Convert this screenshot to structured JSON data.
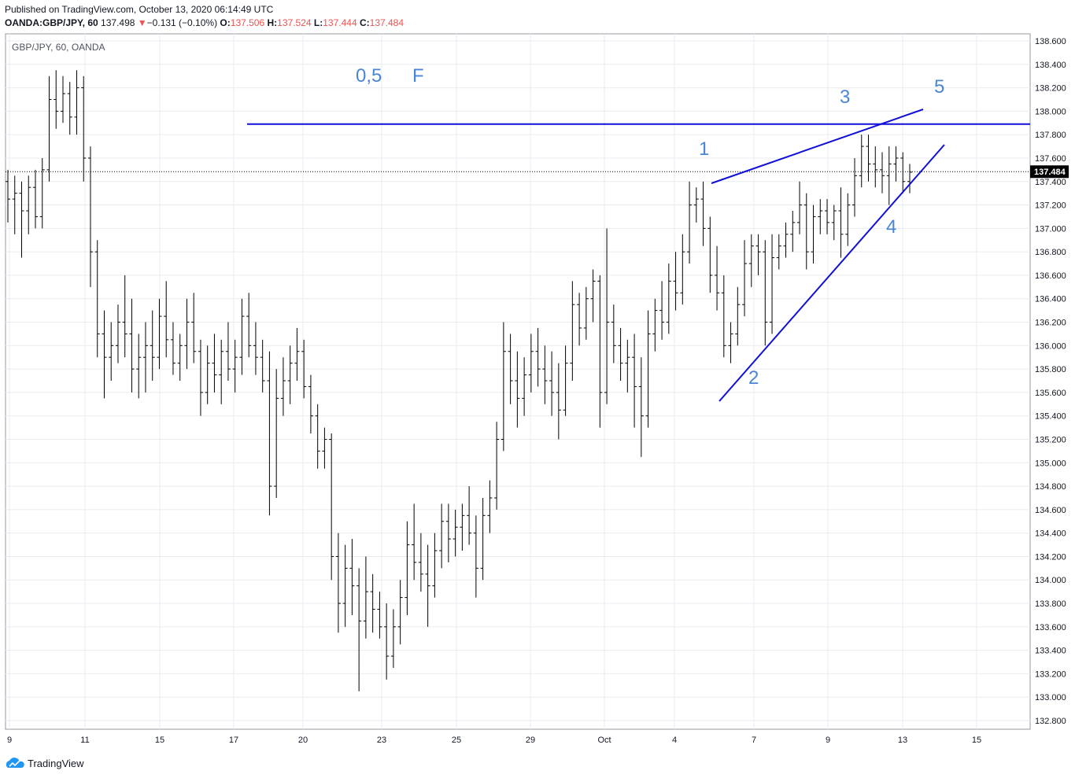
{
  "header": {
    "published": "Published on TradingView.com, October 13, 2020 06:14:49 UTC",
    "symbol": "OANDA:GBP/JPY, 60",
    "last": "137.498",
    "change_arrow": "▼",
    "change": "−0.131 (−0.10%)",
    "o_label": "O:",
    "o_value": "137.506",
    "h_label": "H:",
    "h_value": "137.524",
    "l_label": "L:",
    "l_value": "137.444",
    "c_label": "C:",
    "c_value": "137.484"
  },
  "footer": {
    "brand": "TradingView",
    "logo_icon": "tradingview-cloud-icon"
  },
  "colors": {
    "bars": "#000000",
    "drawing": "#1010d8",
    "annotation": "#4a86d4",
    "grid": "#e8ebf0",
    "price_tag": "#000000",
    "change_down": "#ef5350"
  },
  "chart_data": {
    "type": "ohlc",
    "title": "GBP/JPY, 60, OANDA",
    "x_ticks": [
      "9",
      "11",
      "15",
      "17",
      "20",
      "23",
      "25",
      "29",
      "Oct",
      "4",
      "7",
      "9",
      "13",
      "15"
    ],
    "y_ticks": [
      "138.600",
      "138.400",
      "138.200",
      "138.000",
      "137.800",
      "137.600",
      "137.400",
      "137.200",
      "137.000",
      "136.800",
      "136.600",
      "136.400",
      "136.200",
      "136.000",
      "135.800",
      "135.600",
      "135.400",
      "135.200",
      "135.000",
      "134.800",
      "134.600",
      "134.400",
      "134.200",
      "134.000",
      "133.800",
      "133.600",
      "133.400",
      "133.200",
      "133.000",
      "132.800"
    ],
    "ylim": [
      132.75,
      138.66
    ],
    "last_price": 137.484,
    "last_price_label": "137.484",
    "grid": true,
    "bars": [
      [
        137.4,
        137.5,
        137.05,
        137.25
      ],
      [
        137.25,
        137.45,
        136.95,
        137.3
      ],
      [
        137.3,
        137.4,
        136.75,
        137.15
      ],
      [
        137.15,
        137.45,
        136.95,
        137.35
      ],
      [
        137.35,
        137.5,
        137.0,
        137.1
      ],
      [
        137.1,
        137.6,
        137.0,
        137.5
      ],
      [
        137.5,
        138.3,
        137.4,
        138.1
      ],
      [
        138.1,
        138.35,
        137.85,
        138.0
      ],
      [
        138.0,
        138.3,
        137.9,
        138.15
      ],
      [
        138.15,
        138.25,
        137.8,
        137.95
      ],
      [
        137.95,
        138.35,
        137.8,
        138.2
      ],
      [
        138.2,
        138.3,
        137.4,
        137.6
      ],
      [
        137.6,
        137.7,
        136.5,
        136.8
      ],
      [
        136.8,
        136.9,
        135.9,
        136.1
      ],
      [
        136.1,
        136.3,
        135.55,
        135.9
      ],
      [
        135.9,
        136.2,
        135.7,
        136.0
      ],
      [
        136.0,
        136.35,
        135.85,
        136.2
      ],
      [
        136.2,
        136.6,
        135.9,
        136.1
      ],
      [
        136.1,
        136.4,
        135.6,
        135.8
      ],
      [
        135.8,
        136.1,
        135.55,
        135.9
      ],
      [
        135.9,
        136.2,
        135.6,
        136.0
      ],
      [
        136.0,
        136.3,
        135.7,
        135.9
      ],
      [
        135.9,
        136.4,
        135.8,
        136.25
      ],
      [
        136.25,
        136.55,
        135.9,
        136.05
      ],
      [
        136.05,
        136.2,
        135.75,
        135.85
      ],
      [
        135.85,
        136.1,
        135.7,
        136.0
      ],
      [
        136.0,
        136.4,
        135.8,
        136.2
      ],
      [
        136.2,
        136.45,
        135.85,
        135.95
      ],
      [
        135.95,
        136.05,
        135.4,
        135.6
      ],
      [
        135.6,
        136.0,
        135.5,
        135.85
      ],
      [
        135.85,
        136.1,
        135.6,
        135.75
      ],
      [
        135.75,
        136.05,
        135.5,
        135.95
      ],
      [
        135.95,
        136.2,
        135.7,
        135.8
      ],
      [
        135.8,
        136.05,
        135.6,
        135.9
      ],
      [
        135.9,
        136.4,
        135.75,
        136.25
      ],
      [
        136.25,
        136.45,
        135.9,
        136.0
      ],
      [
        136.0,
        136.2,
        135.75,
        135.9
      ],
      [
        135.9,
        136.05,
        135.6,
        135.7
      ],
      [
        135.7,
        135.95,
        134.55,
        134.8
      ],
      [
        134.8,
        135.8,
        134.7,
        135.55
      ],
      [
        135.55,
        135.9,
        135.4,
        135.7
      ],
      [
        135.7,
        136.0,
        135.5,
        135.85
      ],
      [
        135.85,
        136.15,
        135.7,
        135.95
      ],
      [
        135.95,
        136.05,
        135.55,
        135.65
      ],
      [
        135.65,
        135.75,
        135.25,
        135.4
      ],
      [
        135.4,
        135.5,
        134.95,
        135.1
      ],
      [
        135.1,
        135.3,
        134.95,
        135.2
      ],
      [
        135.2,
        135.25,
        134.0,
        134.2
      ],
      [
        134.2,
        134.4,
        133.55,
        133.8
      ],
      [
        133.8,
        134.3,
        133.6,
        134.1
      ],
      [
        134.1,
        134.35,
        133.7,
        133.95
      ],
      [
        133.95,
        134.1,
        133.05,
        133.65
      ],
      [
        133.65,
        134.2,
        133.5,
        133.9
      ],
      [
        133.9,
        134.05,
        133.55,
        133.75
      ],
      [
        133.75,
        133.9,
        133.5,
        133.6
      ],
      [
        133.6,
        133.8,
        133.15,
        133.35
      ],
      [
        133.35,
        133.75,
        133.25,
        133.6
      ],
      [
        133.6,
        134.0,
        133.45,
        133.85
      ],
      [
        133.85,
        134.5,
        133.7,
        134.3
      ],
      [
        134.3,
        134.65,
        134.0,
        134.15
      ],
      [
        134.15,
        134.4,
        133.9,
        134.05
      ],
      [
        134.05,
        134.3,
        133.6,
        133.95
      ],
      [
        133.95,
        134.4,
        133.85,
        134.25
      ],
      [
        134.25,
        134.65,
        134.1,
        134.5
      ],
      [
        134.5,
        134.65,
        134.15,
        134.35
      ],
      [
        134.35,
        134.6,
        134.2,
        134.45
      ],
      [
        134.45,
        134.65,
        134.25,
        134.55
      ],
      [
        134.55,
        134.8,
        134.3,
        134.4
      ],
      [
        134.4,
        134.55,
        133.85,
        134.1
      ],
      [
        134.1,
        134.7,
        134.0,
        134.55
      ],
      [
        134.55,
        134.85,
        134.4,
        134.7
      ],
      [
        134.7,
        135.35,
        134.6,
        135.2
      ],
      [
        135.2,
        136.2,
        135.1,
        135.95
      ],
      [
        135.95,
        136.1,
        135.5,
        135.7
      ],
      [
        135.7,
        135.95,
        135.3,
        135.55
      ],
      [
        135.55,
        135.9,
        135.4,
        135.75
      ],
      [
        135.75,
        136.1,
        135.6,
        135.95
      ],
      [
        135.95,
        136.15,
        135.65,
        135.8
      ],
      [
        135.8,
        136.0,
        135.5,
        135.7
      ],
      [
        135.7,
        135.95,
        135.4,
        135.6
      ],
      [
        135.6,
        135.85,
        135.2,
        135.45
      ],
      [
        135.45,
        136.0,
        135.4,
        135.85
      ],
      [
        135.85,
        136.55,
        135.7,
        136.35
      ],
      [
        136.35,
        136.45,
        136.0,
        136.15
      ],
      [
        136.15,
        136.5,
        136.05,
        136.4
      ],
      [
        136.4,
        136.65,
        136.2,
        136.55
      ],
      [
        136.55,
        136.6,
        135.3,
        135.6
      ],
      [
        135.6,
        137.0,
        135.5,
        136.2
      ],
      [
        136.2,
        136.35,
        135.85,
        136.0
      ],
      [
        136.0,
        136.15,
        135.7,
        135.85
      ],
      [
        135.85,
        136.05,
        135.6,
        135.9
      ],
      [
        135.9,
        136.1,
        135.3,
        135.65
      ],
      [
        135.65,
        135.9,
        135.05,
        135.4
      ],
      [
        135.4,
        136.3,
        135.3,
        136.1
      ],
      [
        136.1,
        136.4,
        135.95,
        136.3
      ],
      [
        136.3,
        136.55,
        136.05,
        136.2
      ],
      [
        136.2,
        136.7,
        136.1,
        136.55
      ],
      [
        136.55,
        136.8,
        136.3,
        136.45
      ],
      [
        136.45,
        136.95,
        136.35,
        136.8
      ],
      [
        136.8,
        137.4,
        136.7,
        137.2
      ],
      [
        137.2,
        137.35,
        137.05,
        137.25
      ],
      [
        137.25,
        137.4,
        136.85,
        137.0
      ],
      [
        137.0,
        137.1,
        136.45,
        136.6
      ],
      [
        136.6,
        136.85,
        136.3,
        136.45
      ],
      [
        136.45,
        136.6,
        135.9,
        136.0
      ],
      [
        136.0,
        136.2,
        135.85,
        136.1
      ],
      [
        136.1,
        136.5,
        136.0,
        136.35
      ],
      [
        136.35,
        136.9,
        136.25,
        136.7
      ],
      [
        136.7,
        136.95,
        136.5,
        136.85
      ],
      [
        136.85,
        136.95,
        136.6,
        136.8
      ],
      [
        136.8,
        136.9,
        136.0,
        136.2
      ],
      [
        136.2,
        136.95,
        136.1,
        136.75
      ],
      [
        136.75,
        136.95,
        136.65,
        136.85
      ],
      [
        136.85,
        137.05,
        136.75,
        136.95
      ],
      [
        136.95,
        137.15,
        136.8,
        137.05
      ],
      [
        137.05,
        137.4,
        136.95,
        137.2
      ],
      [
        137.2,
        137.3,
        136.65,
        136.8
      ],
      [
        136.8,
        137.2,
        136.7,
        137.1
      ],
      [
        137.1,
        137.25,
        136.95,
        137.15
      ],
      [
        137.15,
        137.25,
        136.95,
        137.05
      ],
      [
        137.05,
        137.2,
        136.9,
        137.15
      ],
      [
        137.15,
        137.35,
        136.75,
        136.95
      ],
      [
        136.95,
        137.3,
        136.85,
        137.2
      ],
      [
        137.2,
        137.6,
        137.1,
        137.45
      ],
      [
        137.45,
        137.8,
        137.35,
        137.7
      ],
      [
        137.7,
        137.8,
        137.4,
        137.55
      ],
      [
        137.55,
        137.7,
        137.35,
        137.5
      ],
      [
        137.5,
        137.65,
        137.3,
        137.45
      ],
      [
        137.45,
        137.7,
        137.2,
        137.55
      ],
      [
        137.55,
        137.7,
        137.4,
        137.6
      ],
      [
        137.6,
        137.65,
        137.3,
        137.4
      ],
      [
        137.4,
        137.55,
        137.3,
        137.48
      ]
    ]
  },
  "drawings": {
    "horizontal_level": 137.89,
    "wave_labels": [
      {
        "text": "0,5"
      },
      {
        "text": "F"
      },
      {
        "text": "1"
      },
      {
        "text": "2"
      },
      {
        "text": "3"
      },
      {
        "text": "4"
      },
      {
        "text": "5"
      }
    ]
  }
}
